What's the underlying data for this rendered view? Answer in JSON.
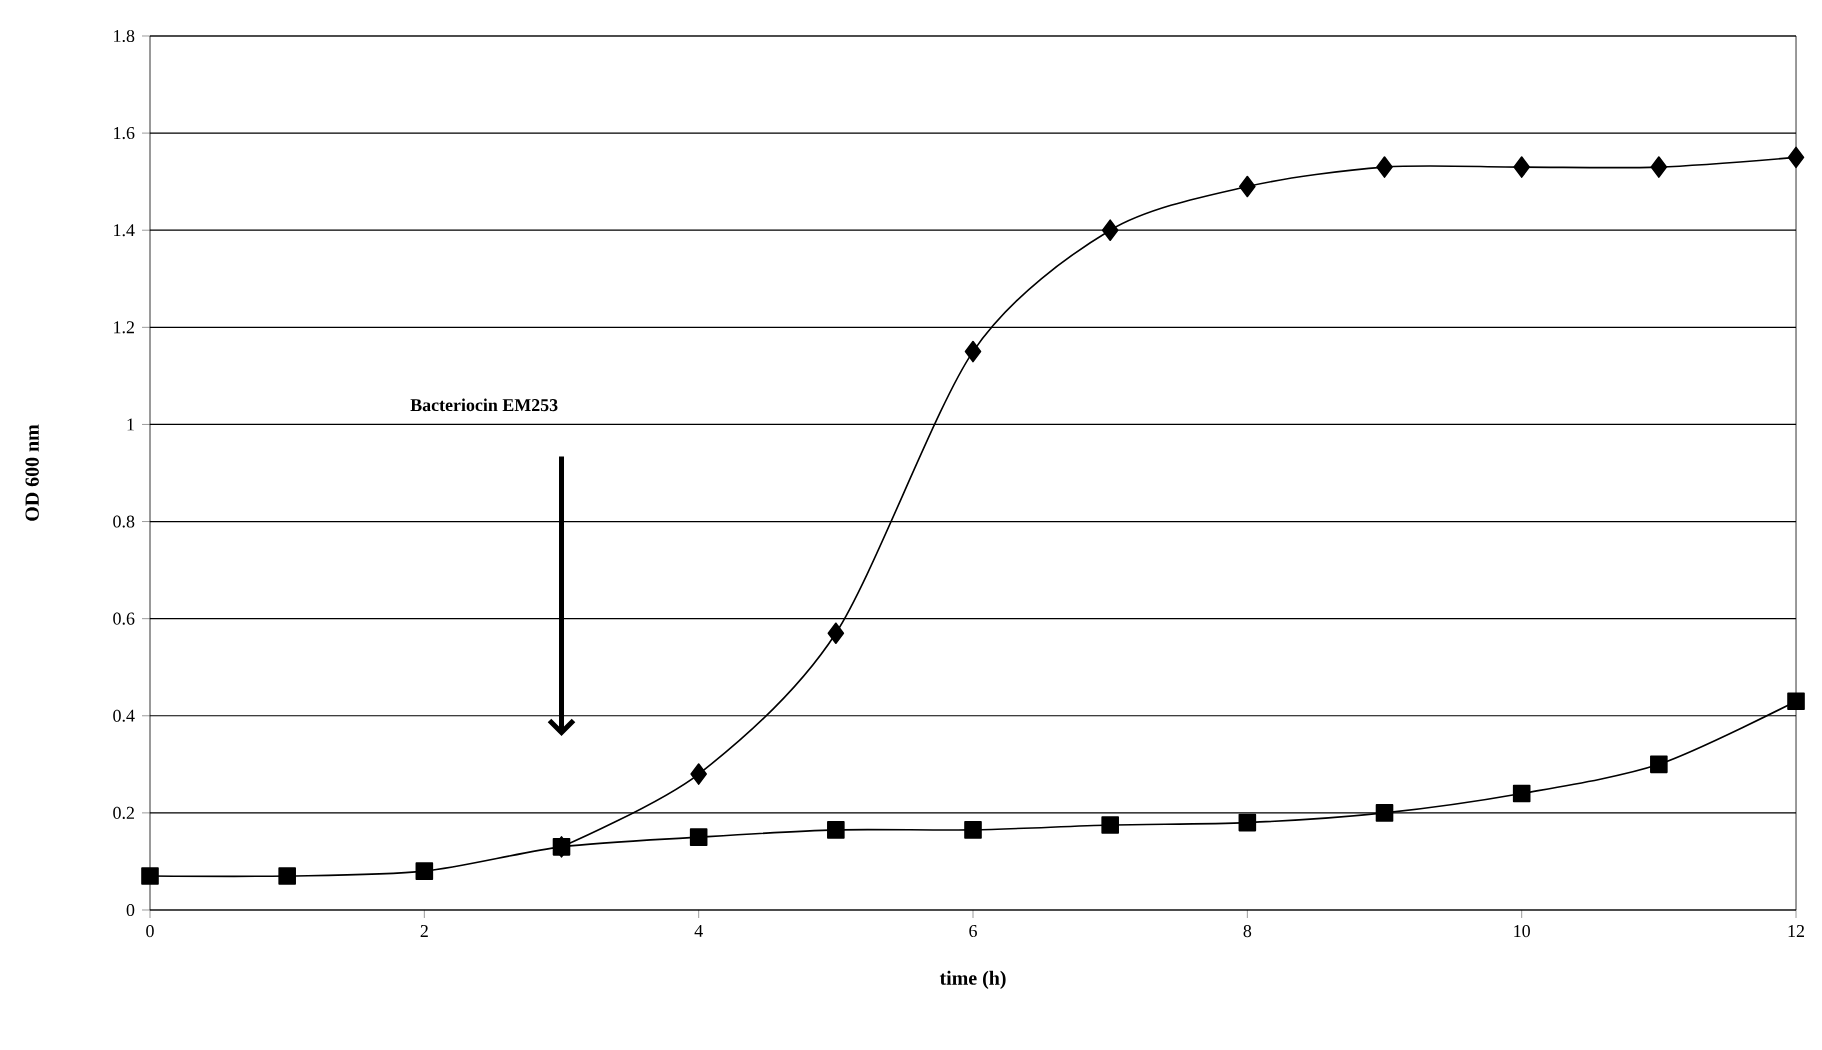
{
  "chart_data": {
    "type": "line",
    "xlabel": "time (h)",
    "ylabel": "OD 600 nm",
    "annotations": [
      "Bacteriocin EM253"
    ],
    "xlim": [
      0,
      12
    ],
    "ylim": [
      0,
      1.8
    ],
    "xticks": [
      0,
      2,
      4,
      6,
      8,
      10,
      12
    ],
    "yticks": [
      0,
      0.2,
      0.4,
      0.6,
      0.8,
      1,
      1.2,
      1.4,
      1.6,
      1.8
    ],
    "grid": "y",
    "line_style": "solid",
    "series": [
      {
        "color": "#000000",
        "marker": "square",
        "x": [
          0,
          1,
          2,
          3,
          4,
          5,
          6,
          7,
          8,
          9,
          10,
          11,
          12
        ],
        "values": [
          0.07,
          0.07,
          0.08,
          0.13,
          0.15,
          0.165,
          0.165,
          0.175,
          0.18,
          0.2,
          0.24,
          0.3,
          0.43
        ]
      },
      {
        "color": "#000000",
        "marker": "diamond",
        "x": [
          3,
          4,
          5,
          6,
          7,
          8,
          9,
          10,
          11,
          12
        ],
        "values": [
          0.13,
          0.28,
          0.57,
          1.15,
          1.4,
          1.49,
          1.53,
          1.53,
          1.53,
          1.55
        ]
      }
    ]
  }
}
